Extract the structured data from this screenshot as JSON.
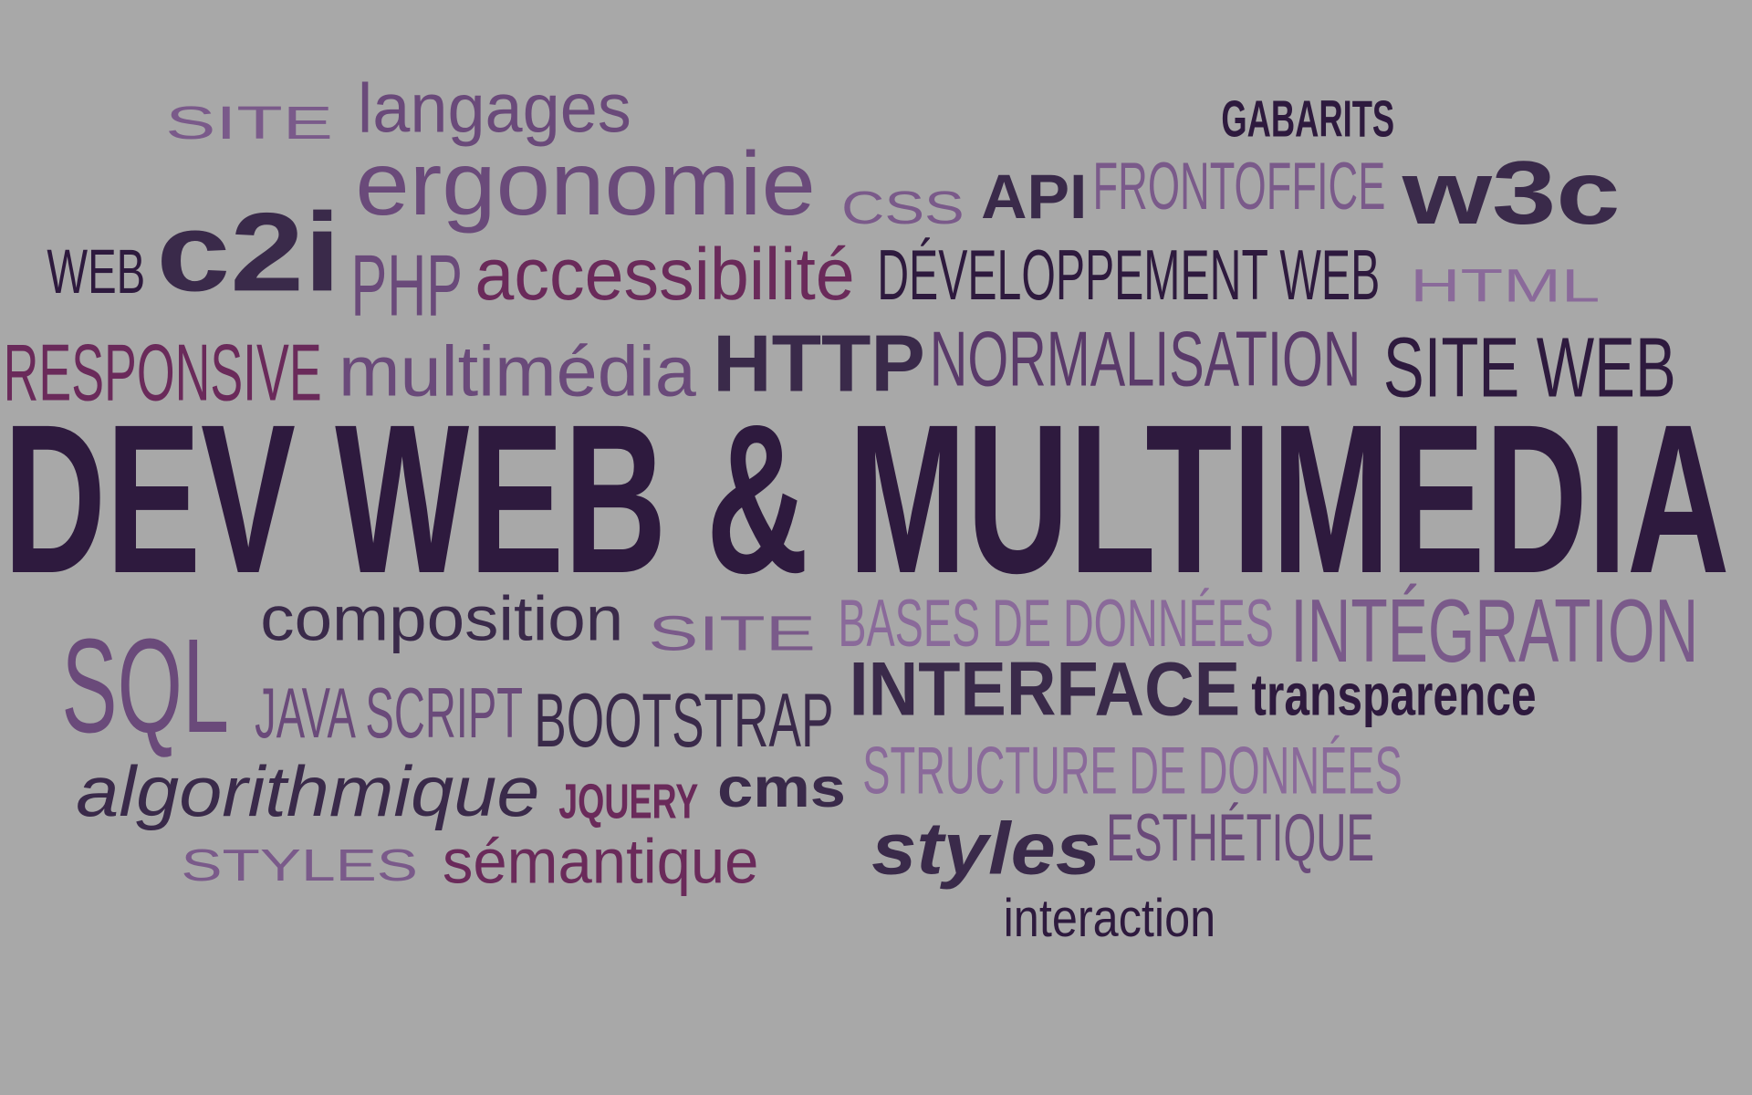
{
  "words": [
    "SITE",
    "langages",
    "GABARITS",
    "ergonomie",
    "CSS",
    "API",
    "FRONTOFFICE",
    "w3c",
    "WEB",
    "c2i",
    "PHP",
    "accessibilité",
    "DÉVELOPPEMENT WEB",
    "HTML",
    "RESPONSIVE",
    "multimédia",
    "HTTP",
    "NORMALISATION",
    "SITE WEB",
    "DEV WEB & MULTIMEDIA",
    "SQL",
    "composition",
    "SITE",
    "BASES DE DONNÉES",
    "INTÉGRATION",
    "JAVA SCRIPT",
    "BOOTSTRAP",
    "INTERFACE",
    "transparence",
    "algorithmique",
    "JQUERY",
    "cms",
    "STRUCTURE DE DONNÉES",
    "STYLES",
    "sémantique",
    "styles",
    "ESTHÉTIQUE",
    "interaction"
  ]
}
